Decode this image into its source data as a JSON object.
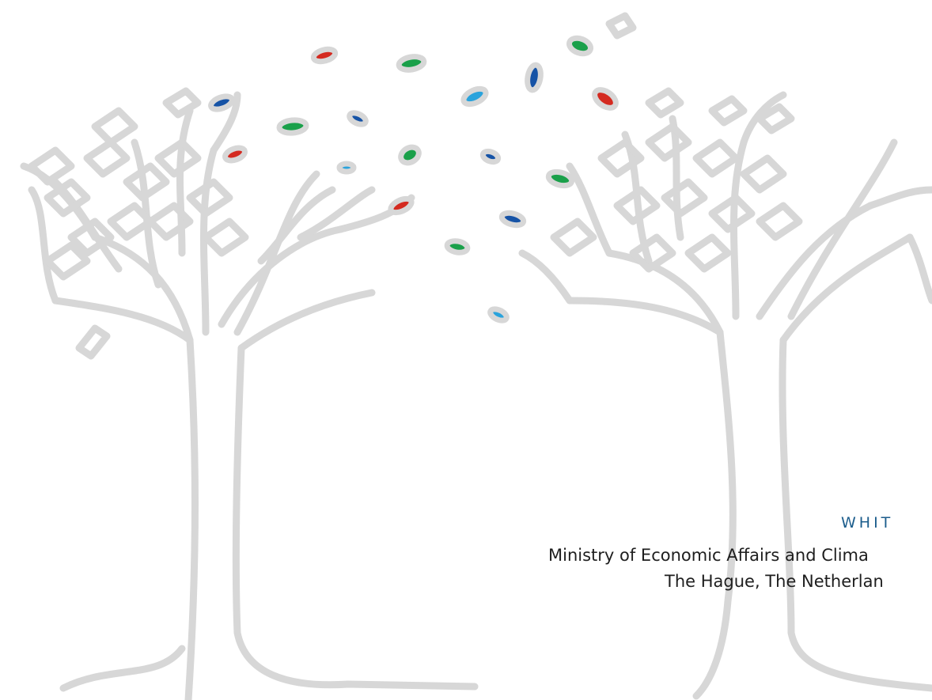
{
  "document_type": "WHIT",
  "publisher": "Ministry of Economic Affairs and Clima",
  "location": "The Hague, The Netherlan"
}
